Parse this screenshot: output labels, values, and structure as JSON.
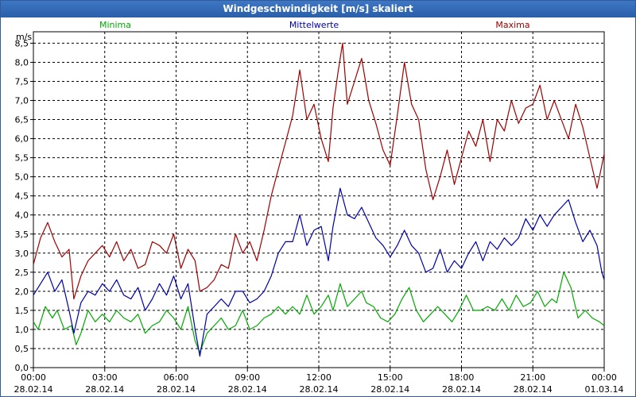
{
  "window": {
    "title": "Windgeschwindigkeit [m/s] skaliert"
  },
  "chart_data": {
    "type": "line",
    "title": "Windgeschwindigkeit [m/s] skaliert",
    "ylabel": "m/s",
    "ylim": [
      0,
      8.8
    ],
    "y_ticks": [
      0,
      0.5,
      1,
      1.5,
      2,
      2.5,
      3,
      3.5,
      4,
      4.5,
      5,
      5.5,
      6,
      6.5,
      7,
      7.5,
      8,
      8.5
    ],
    "y_tick_labels": [
      "0,0",
      "0,5",
      "1,0",
      "1,5",
      "2,0",
      "2,5",
      "3,0",
      "3,5",
      "4,0",
      "4,5",
      "5,0",
      "5,5",
      "6,0",
      "6,5",
      "7,0",
      "7,5",
      "8,0",
      "8,5"
    ],
    "x_range_hours": [
      0,
      24
    ],
    "x_ticks": [
      {
        "hour": 0,
        "time": "00:00",
        "date": "28.02.14"
      },
      {
        "hour": 3,
        "time": "03:00",
        "date": "28.02.14"
      },
      {
        "hour": 6,
        "time": "06:00",
        "date": "28.02.14"
      },
      {
        "hour": 9,
        "time": "09:00",
        "date": "28.02.14"
      },
      {
        "hour": 12,
        "time": "12:00",
        "date": "28.02.14"
      },
      {
        "hour": 15,
        "time": "15:00",
        "date": "28.02.14"
      },
      {
        "hour": 18,
        "time": "18:00",
        "date": "28.02.14"
      },
      {
        "hour": 21,
        "time": "21:00",
        "date": "28.02.14"
      },
      {
        "hour": 24,
        "time": "00:00",
        "date": "01.03.14"
      }
    ],
    "grid": true,
    "series": [
      {
        "name": "Minima",
        "color": "#00aa00",
        "points": [
          [
            0,
            1.2
          ],
          [
            0.2,
            1.0
          ],
          [
            0.5,
            1.6
          ],
          [
            0.8,
            1.3
          ],
          [
            1.0,
            1.5
          ],
          [
            1.3,
            1.0
          ],
          [
            1.6,
            1.1
          ],
          [
            1.8,
            0.6
          ],
          [
            2.0,
            0.9
          ],
          [
            2.3,
            1.5
          ],
          [
            2.6,
            1.2
          ],
          [
            2.9,
            1.4
          ],
          [
            3.2,
            1.2
          ],
          [
            3.5,
            1.5
          ],
          [
            3.8,
            1.3
          ],
          [
            4.1,
            1.2
          ],
          [
            4.4,
            1.4
          ],
          [
            4.7,
            0.9
          ],
          [
            5.0,
            1.1
          ],
          [
            5.3,
            1.2
          ],
          [
            5.6,
            1.5
          ],
          [
            5.9,
            1.3
          ],
          [
            6.2,
            1.0
          ],
          [
            6.5,
            1.6
          ],
          [
            6.8,
            0.7
          ],
          [
            7.0,
            0.4
          ],
          [
            7.3,
            0.9
          ],
          [
            7.6,
            1.1
          ],
          [
            7.9,
            1.3
          ],
          [
            8.2,
            1.0
          ],
          [
            8.5,
            1.1
          ],
          [
            8.8,
            1.5
          ],
          [
            9.1,
            1.0
          ],
          [
            9.4,
            1.1
          ],
          [
            9.7,
            1.3
          ],
          [
            10.0,
            1.4
          ],
          [
            10.3,
            1.6
          ],
          [
            10.6,
            1.4
          ],
          [
            10.9,
            1.6
          ],
          [
            11.2,
            1.4
          ],
          [
            11.5,
            1.9
          ],
          [
            11.8,
            1.4
          ],
          [
            12.1,
            1.6
          ],
          [
            12.4,
            1.9
          ],
          [
            12.6,
            1.5
          ],
          [
            12.9,
            2.2
          ],
          [
            13.2,
            1.6
          ],
          [
            13.5,
            1.8
          ],
          [
            13.8,
            2.0
          ],
          [
            14.0,
            1.7
          ],
          [
            14.3,
            1.6
          ],
          [
            14.6,
            1.3
          ],
          [
            14.9,
            1.2
          ],
          [
            15.2,
            1.4
          ],
          [
            15.5,
            1.8
          ],
          [
            15.8,
            2.1
          ],
          [
            16.1,
            1.5
          ],
          [
            16.4,
            1.2
          ],
          [
            16.7,
            1.4
          ],
          [
            17.0,
            1.6
          ],
          [
            17.3,
            1.4
          ],
          [
            17.6,
            1.2
          ],
          [
            17.9,
            1.5
          ],
          [
            18.2,
            1.9
          ],
          [
            18.5,
            1.5
          ],
          [
            18.8,
            1.5
          ],
          [
            19.1,
            1.6
          ],
          [
            19.4,
            1.5
          ],
          [
            19.7,
            1.8
          ],
          [
            20.0,
            1.5
          ],
          [
            20.3,
            1.9
          ],
          [
            20.6,
            1.6
          ],
          [
            20.9,
            1.7
          ],
          [
            21.2,
            2.0
          ],
          [
            21.5,
            1.6
          ],
          [
            21.8,
            1.8
          ],
          [
            22.0,
            1.7
          ],
          [
            22.3,
            2.5
          ],
          [
            22.6,
            2.1
          ],
          [
            22.9,
            1.3
          ],
          [
            23.2,
            1.5
          ],
          [
            23.5,
            1.3
          ],
          [
            23.8,
            1.2
          ],
          [
            24.0,
            1.1
          ]
        ]
      },
      {
        "name": "Mittelwerte",
        "color": "#0000aa",
        "points": [
          [
            0,
            1.9
          ],
          [
            0.3,
            2.2
          ],
          [
            0.6,
            2.5
          ],
          [
            0.9,
            2.0
          ],
          [
            1.2,
            2.3
          ],
          [
            1.5,
            1.5
          ],
          [
            1.7,
            0.9
          ],
          [
            2.0,
            1.7
          ],
          [
            2.3,
            2.0
          ],
          [
            2.6,
            1.9
          ],
          [
            2.9,
            2.2
          ],
          [
            3.2,
            2.0
          ],
          [
            3.5,
            2.3
          ],
          [
            3.8,
            1.9
          ],
          [
            4.1,
            1.8
          ],
          [
            4.4,
            2.1
          ],
          [
            4.7,
            1.5
          ],
          [
            5.0,
            1.8
          ],
          [
            5.3,
            2.2
          ],
          [
            5.6,
            1.9
          ],
          [
            5.9,
            2.4
          ],
          [
            6.2,
            1.8
          ],
          [
            6.5,
            2.2
          ],
          [
            6.8,
            1.0
          ],
          [
            7.0,
            0.3
          ],
          [
            7.3,
            1.4
          ],
          [
            7.6,
            1.6
          ],
          [
            7.9,
            1.8
          ],
          [
            8.2,
            1.6
          ],
          [
            8.5,
            2.0
          ],
          [
            8.8,
            2.0
          ],
          [
            9.1,
            1.7
          ],
          [
            9.4,
            1.8
          ],
          [
            9.7,
            2.0
          ],
          [
            10.0,
            2.4
          ],
          [
            10.3,
            3.0
          ],
          [
            10.6,
            3.3
          ],
          [
            10.9,
            3.3
          ],
          [
            11.2,
            4.0
          ],
          [
            11.5,
            3.2
          ],
          [
            11.8,
            3.6
          ],
          [
            12.1,
            3.7
          ],
          [
            12.4,
            2.8
          ],
          [
            12.6,
            3.7
          ],
          [
            12.9,
            4.7
          ],
          [
            13.2,
            4.0
          ],
          [
            13.5,
            3.9
          ],
          [
            13.8,
            4.2
          ],
          [
            14.1,
            3.8
          ],
          [
            14.4,
            3.4
          ],
          [
            14.7,
            3.2
          ],
          [
            15.0,
            2.9
          ],
          [
            15.3,
            3.2
          ],
          [
            15.6,
            3.6
          ],
          [
            15.9,
            3.2
          ],
          [
            16.2,
            3.0
          ],
          [
            16.5,
            2.5
          ],
          [
            16.8,
            2.6
          ],
          [
            17.1,
            3.1
          ],
          [
            17.4,
            2.5
          ],
          [
            17.7,
            2.8
          ],
          [
            18.0,
            2.6
          ],
          [
            18.3,
            3.0
          ],
          [
            18.6,
            3.3
          ],
          [
            18.9,
            2.8
          ],
          [
            19.2,
            3.3
          ],
          [
            19.5,
            3.1
          ],
          [
            19.8,
            3.4
          ],
          [
            20.1,
            3.2
          ],
          [
            20.4,
            3.4
          ],
          [
            20.7,
            3.9
          ],
          [
            21.0,
            3.6
          ],
          [
            21.3,
            4.0
          ],
          [
            21.6,
            3.7
          ],
          [
            21.9,
            4.0
          ],
          [
            22.2,
            4.2
          ],
          [
            22.5,
            4.4
          ],
          [
            22.8,
            3.8
          ],
          [
            23.1,
            3.3
          ],
          [
            23.4,
            3.6
          ],
          [
            23.7,
            3.2
          ],
          [
            23.9,
            2.5
          ],
          [
            24.0,
            2.3
          ]
        ]
      },
      {
        "name": "Maxima",
        "color": "#a00000",
        "points": [
          [
            0,
            2.7
          ],
          [
            0.3,
            3.4
          ],
          [
            0.6,
            3.8
          ],
          [
            0.9,
            3.3
          ],
          [
            1.2,
            2.9
          ],
          [
            1.5,
            3.1
          ],
          [
            1.7,
            1.8
          ],
          [
            2.0,
            2.4
          ],
          [
            2.3,
            2.8
          ],
          [
            2.6,
            3.0
          ],
          [
            2.9,
            3.2
          ],
          [
            3.2,
            2.9
          ],
          [
            3.5,
            3.3
          ],
          [
            3.8,
            2.8
          ],
          [
            4.1,
            3.1
          ],
          [
            4.4,
            2.6
          ],
          [
            4.7,
            2.7
          ],
          [
            5.0,
            3.3
          ],
          [
            5.3,
            3.2
          ],
          [
            5.6,
            3.0
          ],
          [
            5.9,
            3.5
          ],
          [
            6.2,
            2.6
          ],
          [
            6.5,
            3.1
          ],
          [
            6.8,
            2.8
          ],
          [
            7.0,
            2.0
          ],
          [
            7.3,
            2.1
          ],
          [
            7.6,
            2.3
          ],
          [
            7.9,
            2.7
          ],
          [
            8.2,
            2.6
          ],
          [
            8.5,
            3.5
          ],
          [
            8.8,
            3.0
          ],
          [
            9.1,
            3.3
          ],
          [
            9.4,
            2.8
          ],
          [
            9.7,
            3.6
          ],
          [
            10.0,
            4.5
          ],
          [
            10.3,
            5.2
          ],
          [
            10.6,
            5.9
          ],
          [
            10.9,
            6.6
          ],
          [
            11.2,
            7.8
          ],
          [
            11.5,
            6.5
          ],
          [
            11.8,
            6.9
          ],
          [
            12.1,
            6.0
          ],
          [
            12.4,
            5.4
          ],
          [
            12.6,
            6.8
          ],
          [
            12.8,
            7.7
          ],
          [
            13.0,
            8.5
          ],
          [
            13.2,
            6.9
          ],
          [
            13.5,
            7.5
          ],
          [
            13.8,
            8.1
          ],
          [
            14.1,
            7.0
          ],
          [
            14.4,
            6.4
          ],
          [
            14.7,
            5.7
          ],
          [
            15.0,
            5.3
          ],
          [
            15.3,
            6.6
          ],
          [
            15.6,
            8.0
          ],
          [
            15.9,
            6.9
          ],
          [
            16.2,
            6.5
          ],
          [
            16.5,
            5.2
          ],
          [
            16.8,
            4.4
          ],
          [
            17.1,
            5.0
          ],
          [
            17.4,
            5.7
          ],
          [
            17.7,
            4.8
          ],
          [
            18.0,
            5.5
          ],
          [
            18.3,
            6.2
          ],
          [
            18.6,
            5.8
          ],
          [
            18.9,
            6.5
          ],
          [
            19.2,
            5.4
          ],
          [
            19.5,
            6.5
          ],
          [
            19.8,
            6.2
          ],
          [
            20.1,
            7.0
          ],
          [
            20.4,
            6.4
          ],
          [
            20.7,
            6.8
          ],
          [
            21.0,
            6.9
          ],
          [
            21.3,
            7.4
          ],
          [
            21.6,
            6.5
          ],
          [
            21.9,
            7.0
          ],
          [
            22.2,
            6.5
          ],
          [
            22.5,
            6.0
          ],
          [
            22.8,
            6.9
          ],
          [
            23.1,
            6.3
          ],
          [
            23.4,
            5.5
          ],
          [
            23.7,
            4.7
          ],
          [
            23.9,
            5.3
          ],
          [
            24.0,
            5.6
          ]
        ]
      }
    ]
  }
}
